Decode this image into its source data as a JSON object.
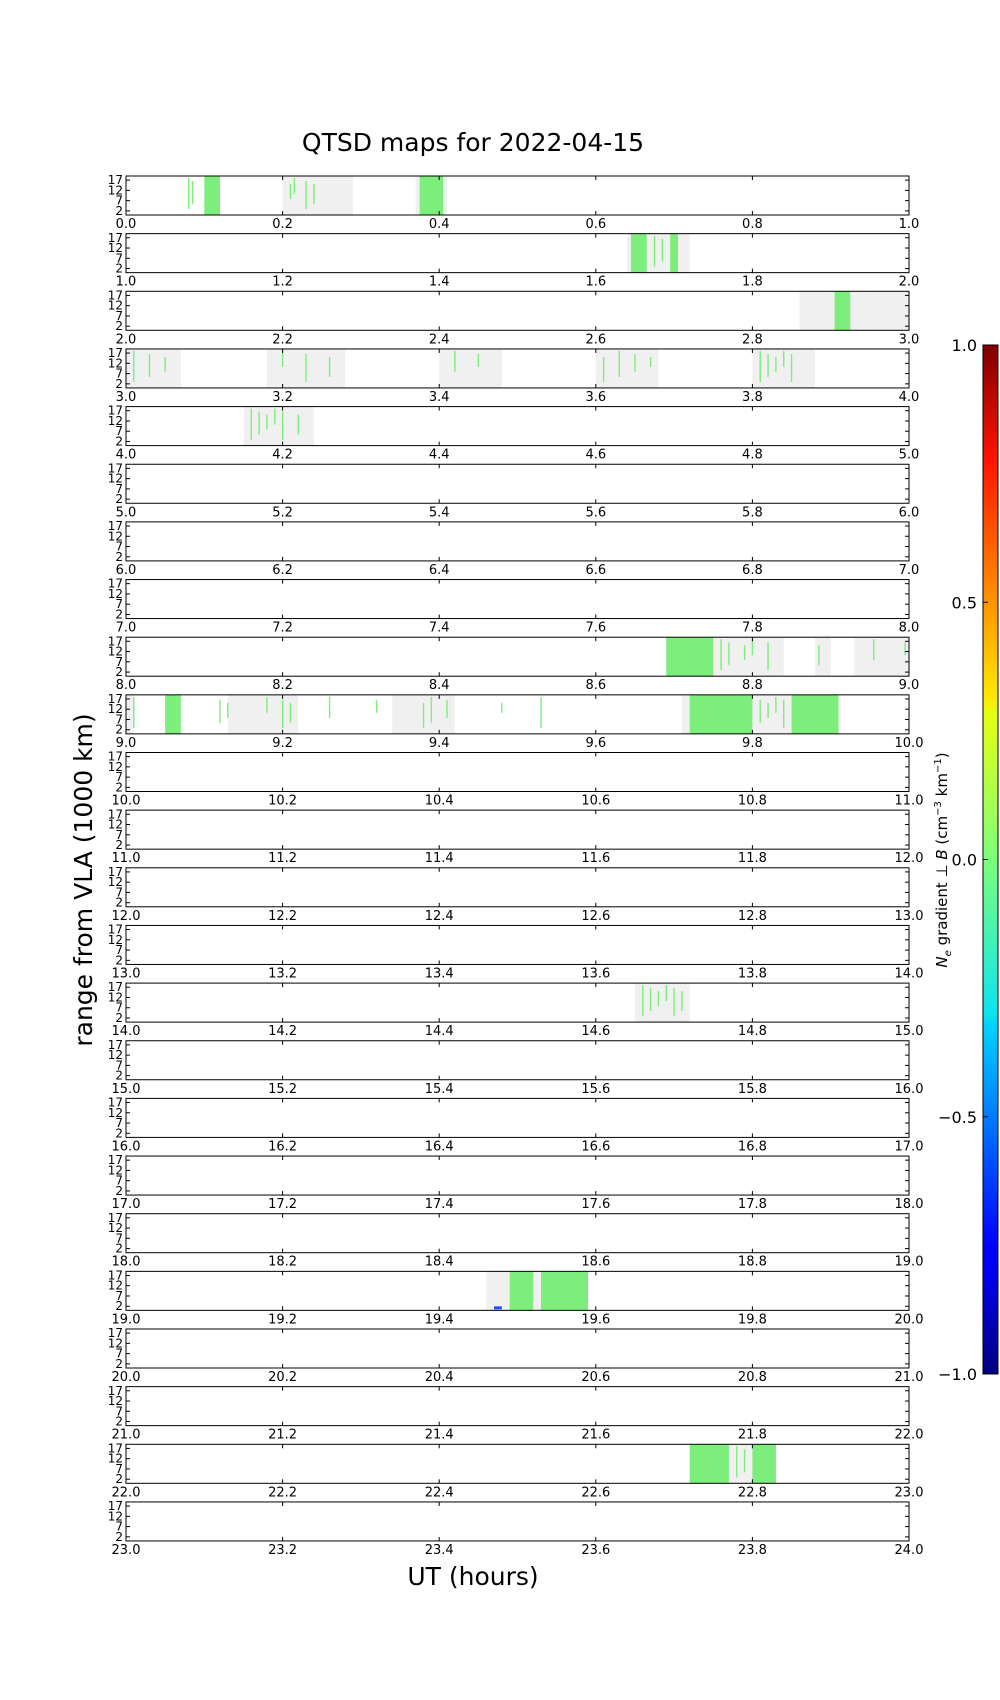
{
  "chart_data": {
    "type": "heatmap",
    "title": "QTSD maps for 2022-04-15",
    "xlabel": "UT (hours)",
    "ylabel": "range from VLA (1000 km)",
    "ytick_labels": [
      "17",
      "12",
      "7",
      "2"
    ],
    "ylim": [
      0,
      19
    ],
    "colorbar": {
      "label": "N_e gradient ⊥ B (cm^-3 km^-1)",
      "label_symbol": "N",
      "label_subscript": "e",
      "label_gradient": " gradient ⊥ ",
      "label_vector": "B",
      "label_units_open": " (cm",
      "label_exp1": "−3",
      "label_units_mid": " km",
      "label_exp2": "−1",
      "label_units_close": ")",
      "range": [
        -1.0,
        1.0
      ],
      "ticks": [
        1.0,
        0.5,
        0.0,
        -0.5,
        -1.0
      ],
      "tick_labels": [
        "1.0",
        "0.5",
        "0.0",
        "−0.5",
        "−1.0"
      ],
      "colormap": "jet"
    },
    "colors": {
      "gray": "#f0f0f0",
      "green": "#7ded7b",
      "blue": "#1f4fff"
    },
    "panels": [
      {
        "xticks": [
          "0.0",
          "0.2",
          "0.4",
          "0.6",
          "0.8",
          "1.0"
        ],
        "gray": [
          [
            0.2,
            0.29
          ],
          [
            0.37,
            0.41
          ]
        ],
        "solid": [
          [
            0.1,
            0.12
          ],
          [
            0.375,
            0.405
          ]
        ],
        "lines": [
          0.08,
          0.085,
          0.21,
          0.215,
          0.23,
          0.24
        ]
      },
      {
        "xticks": [
          "1.0",
          "1.2",
          "1.4",
          "1.6",
          "1.8",
          "2.0"
        ],
        "gray": [
          [
            1.64,
            1.72
          ]
        ],
        "solid": [
          [
            1.645,
            1.665
          ],
          [
            1.695,
            1.705
          ]
        ],
        "lines": [
          1.675,
          1.685
        ]
      },
      {
        "xticks": [
          "2.0",
          "2.2",
          "2.4",
          "2.6",
          "2.8",
          "3.0"
        ],
        "gray": [
          [
            2.86,
            3.0
          ]
        ],
        "solid": [
          [
            2.905,
            2.925
          ]
        ],
        "lines": []
      },
      {
        "xticks": [
          "3.0",
          "3.2",
          "3.4",
          "3.6",
          "3.8",
          "4.0"
        ],
        "gray": [
          [
            3.0,
            3.07
          ],
          [
            3.18,
            3.28
          ],
          [
            3.4,
            3.48
          ],
          [
            3.6,
            3.68
          ],
          [
            3.8,
            3.88
          ]
        ],
        "solid": [],
        "lines": [
          3.01,
          3.03,
          3.05,
          3.2,
          3.23,
          3.26,
          3.42,
          3.45,
          3.61,
          3.63,
          3.65,
          3.67,
          3.81,
          3.82,
          3.83,
          3.84,
          3.85
        ]
      },
      {
        "xticks": [
          "4.0",
          "4.2",
          "4.4",
          "4.6",
          "4.8",
          "5.0"
        ],
        "gray": [
          [
            4.15,
            4.24
          ]
        ],
        "solid": [],
        "lines": [
          4.16,
          4.17,
          4.18,
          4.19,
          4.2,
          4.22
        ]
      },
      {
        "xticks": [
          "5.0",
          "5.2",
          "5.4",
          "5.6",
          "5.8",
          "6.0"
        ],
        "gray": [],
        "solid": [],
        "lines": []
      },
      {
        "xticks": [
          "6.0",
          "6.2",
          "6.4",
          "6.6",
          "6.8",
          "7.0"
        ],
        "gray": [],
        "solid": [],
        "lines": []
      },
      {
        "xticks": [
          "7.0",
          "7.2",
          "7.4",
          "7.6",
          "7.8",
          "8.0"
        ],
        "gray": [],
        "solid": [],
        "lines": []
      },
      {
        "xticks": [
          "8.0",
          "8.2",
          "8.4",
          "8.6",
          "8.8",
          "9.0"
        ],
        "gray": [
          [
            8.69,
            8.84
          ],
          [
            8.88,
            8.9
          ],
          [
            8.93,
            9.0
          ]
        ],
        "solid": [
          [
            8.69,
            8.75
          ]
        ],
        "lines": [
          8.76,
          8.77,
          8.79,
          8.8,
          8.82,
          8.885,
          8.955,
          8.995
        ]
      },
      {
        "xticks": [
          "9.0",
          "9.2",
          "9.4",
          "9.6",
          "9.8",
          "10.0"
        ],
        "gray": [
          [
            9.0,
            9.01
          ],
          [
            9.13,
            9.22
          ],
          [
            9.34,
            9.42
          ],
          [
            9.71,
            9.91
          ]
        ],
        "solid": [
          [
            9.05,
            9.07
          ],
          [
            9.72,
            9.8
          ],
          [
            9.85,
            9.91
          ]
        ],
        "lines": [
          9.01,
          9.12,
          9.13,
          9.18,
          9.2,
          9.21,
          9.26,
          9.32,
          9.38,
          9.39,
          9.41,
          9.48,
          9.53,
          9.81,
          9.82,
          9.83,
          9.84
        ]
      },
      {
        "xticks": [
          "10.0",
          "10.2",
          "10.4",
          "10.6",
          "10.8",
          "11.0"
        ],
        "gray": [],
        "solid": [],
        "lines": []
      },
      {
        "xticks": [
          "11.0",
          "11.2",
          "11.4",
          "11.6",
          "11.8",
          "12.0"
        ],
        "gray": [],
        "solid": [],
        "lines": []
      },
      {
        "xticks": [
          "12.0",
          "12.2",
          "12.4",
          "12.6",
          "12.8",
          "13.0"
        ],
        "gray": [],
        "solid": [],
        "lines": []
      },
      {
        "xticks": [
          "13.0",
          "13.2",
          "13.4",
          "13.6",
          "13.8",
          "14.0"
        ],
        "gray": [],
        "solid": [],
        "lines": []
      },
      {
        "xticks": [
          "14.0",
          "14.2",
          "14.4",
          "14.6",
          "14.8",
          "15.0"
        ],
        "gray": [
          [
            14.65,
            14.72
          ]
        ],
        "solid": [],
        "lines": [
          14.66,
          14.67,
          14.68,
          14.69,
          14.7,
          14.71
        ]
      },
      {
        "xticks": [
          "15.0",
          "15.2",
          "15.4",
          "15.6",
          "15.8",
          "16.0"
        ],
        "gray": [],
        "solid": [],
        "lines": []
      },
      {
        "xticks": [
          "16.0",
          "16.2",
          "16.4",
          "16.6",
          "16.8",
          "17.0"
        ],
        "gray": [],
        "solid": [],
        "lines": []
      },
      {
        "xticks": [
          "17.0",
          "17.2",
          "17.4",
          "17.6",
          "17.8",
          "18.0"
        ],
        "gray": [],
        "solid": [],
        "lines": []
      },
      {
        "xticks": [
          "18.0",
          "18.2",
          "18.4",
          "18.6",
          "18.8",
          "19.0"
        ],
        "gray": [],
        "solid": [],
        "lines": []
      },
      {
        "xticks": [
          "19.0",
          "19.2",
          "19.4",
          "19.6",
          "19.8",
          "20.0"
        ],
        "gray": [
          [
            19.46,
            19.59
          ]
        ],
        "solid": [
          [
            19.49,
            19.52
          ],
          [
            19.53,
            19.59
          ]
        ],
        "lines": [
          19.54,
          19.56
        ],
        "blue": [
          [
            19.47,
            19.48
          ]
        ]
      },
      {
        "xticks": [
          "20.0",
          "20.2",
          "20.4",
          "20.6",
          "20.8",
          "21.0"
        ],
        "gray": [],
        "solid": [],
        "lines": []
      },
      {
        "xticks": [
          "21.0",
          "21.2",
          "21.4",
          "21.6",
          "21.8",
          "22.0"
        ],
        "gray": [],
        "solid": [],
        "lines": []
      },
      {
        "xticks": [
          "22.0",
          "22.2",
          "22.4",
          "22.6",
          "22.8",
          "23.0"
        ],
        "gray": [
          [
            22.72,
            22.83
          ]
        ],
        "solid": [
          [
            22.72,
            22.77
          ],
          [
            22.8,
            22.83
          ]
        ],
        "lines": [
          22.78,
          22.79
        ]
      },
      {
        "xticks": [
          "23.0",
          "23.2",
          "23.4",
          "23.6",
          "23.8",
          "24.0"
        ],
        "gray": [],
        "solid": [],
        "lines": []
      }
    ]
  }
}
